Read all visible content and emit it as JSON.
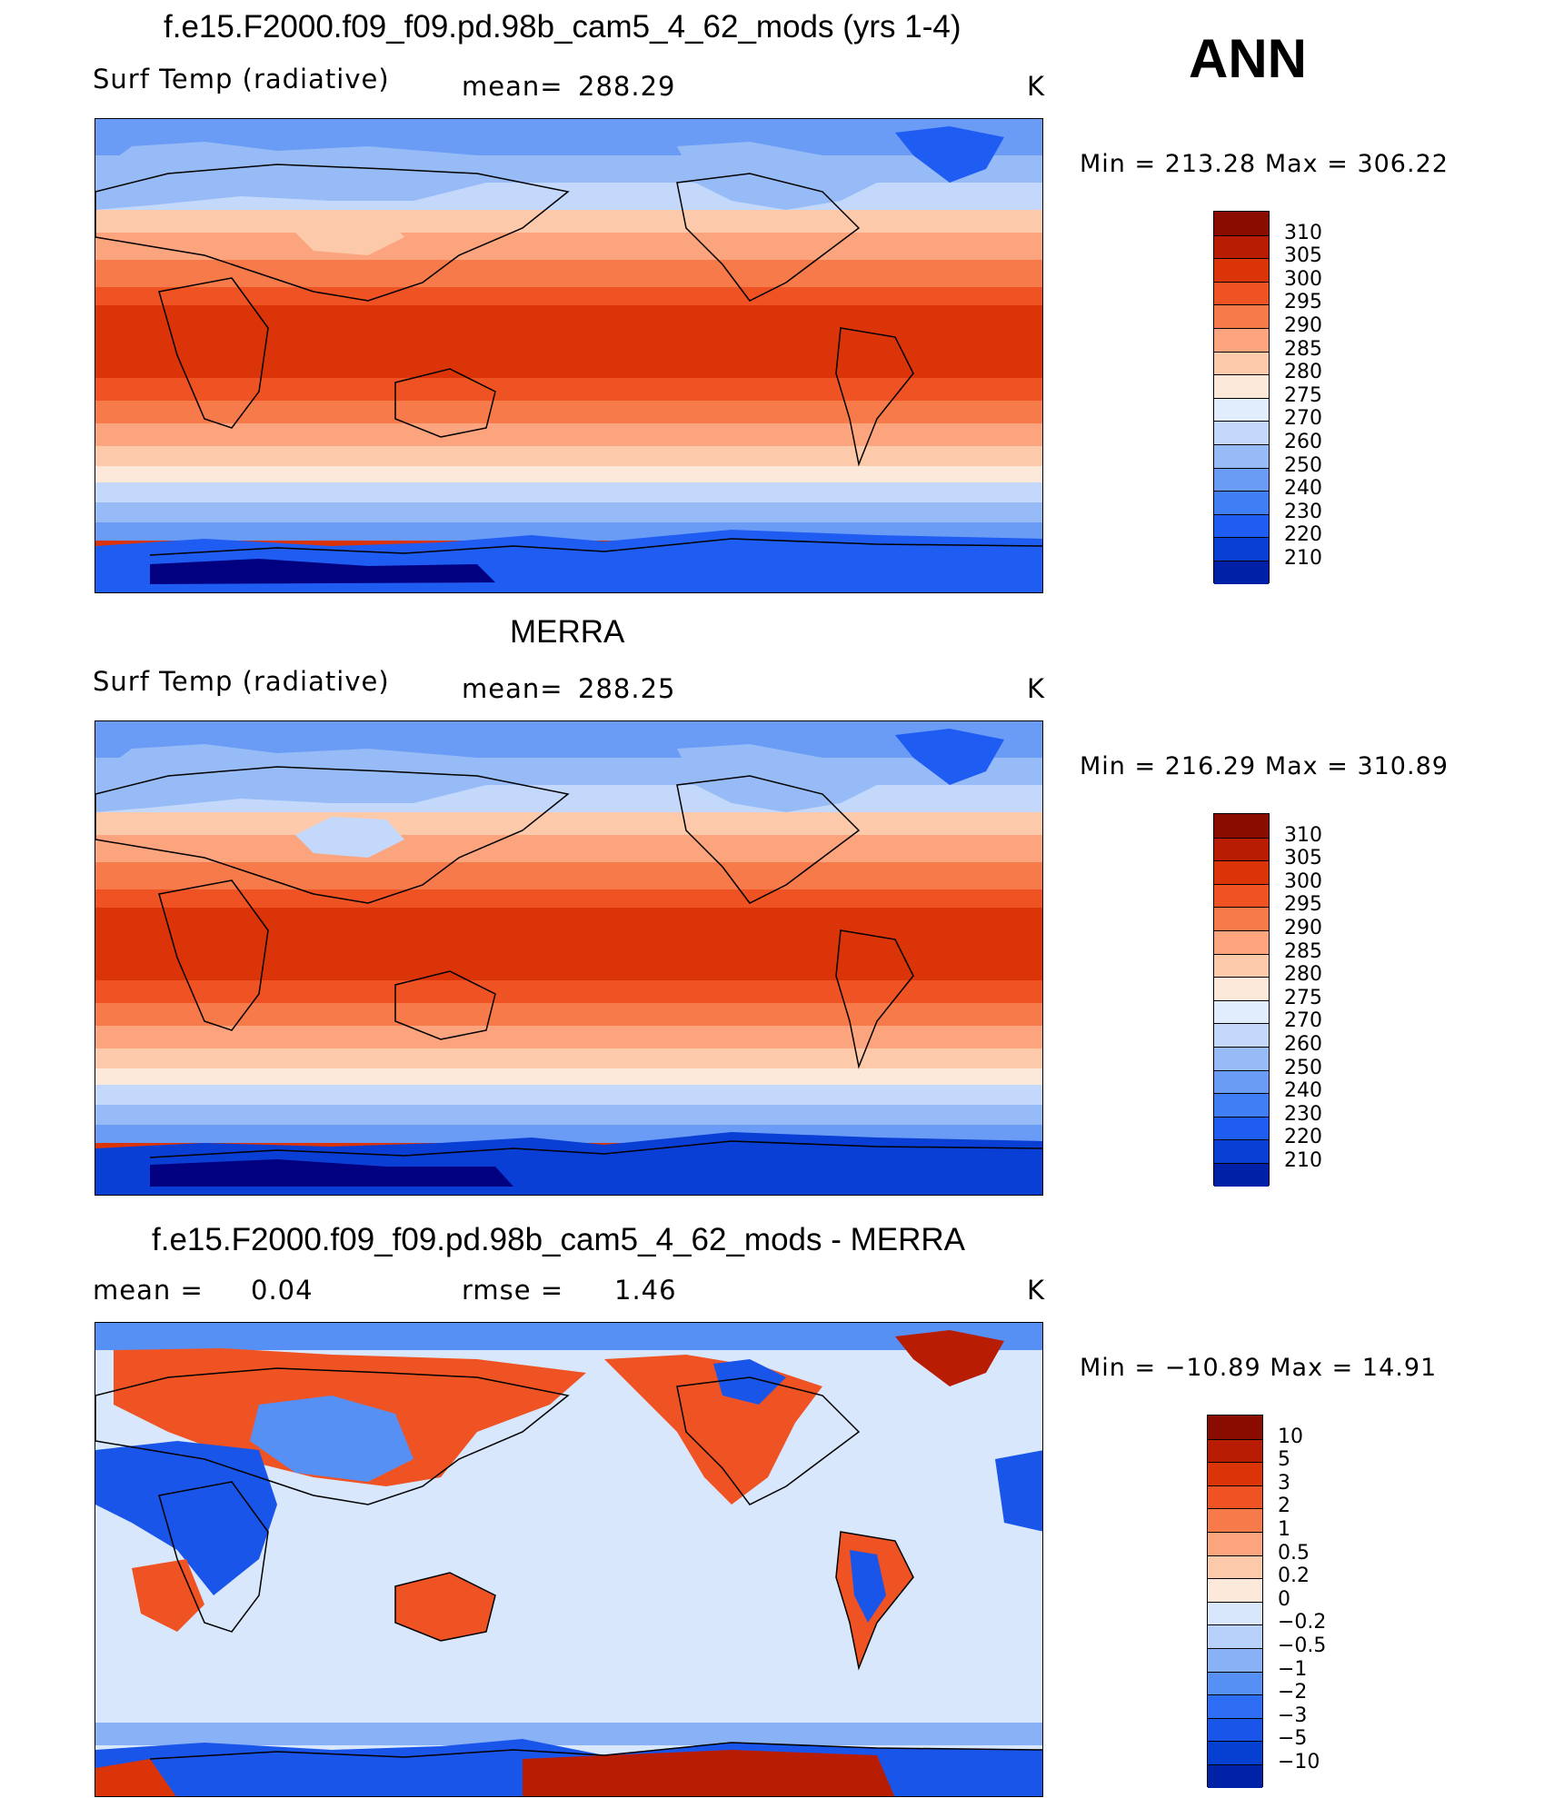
{
  "season": "ANN",
  "colors": {
    "abs_scale": [
      "#000080",
      "#0020a8",
      "#0a3fd6",
      "#1f5cf2",
      "#3f7ef5",
      "#6a9cf5",
      "#97bbf7",
      "#c3d8fb",
      "#e1edfc",
      "#fde9d9",
      "#fccaab",
      "#fca47d",
      "#f77a4a",
      "#ef5323",
      "#db3408",
      "#b81d04",
      "#8a0c00"
    ],
    "diff_scale": [
      "#000080",
      "#0022a6",
      "#0640d2",
      "#1a55ea",
      "#2e6ef4",
      "#5790f5",
      "#89b1f6",
      "#b7d1fb",
      "#d8e7fc",
      "#fde9d9",
      "#fccaab",
      "#fca47d",
      "#f77a4a",
      "#ef5323",
      "#db3408",
      "#b81d04",
      "#8a0c00"
    ]
  },
  "panels": [
    {
      "title": "f.e15.F2000.f09_f09.pd.98b_cam5_4_62_mods (yrs 1-4)",
      "left_label": "Surf Temp (radiative)",
      "center_label": "mean=",
      "center_value": "288.29",
      "units": "K",
      "min_label": "Min",
      "min_value": "213.28",
      "max_label": "Max",
      "max_value": "306.22",
      "levels": [
        "310",
        "305",
        "300",
        "295",
        "290",
        "285",
        "280",
        "275",
        "270",
        "260",
        "250",
        "240",
        "230",
        "220",
        "210"
      ]
    },
    {
      "title": "MERRA",
      "left_label": "Surf Temp (radiative)",
      "center_label": "mean=",
      "center_value": "288.25",
      "units": "K",
      "min_label": "Min",
      "min_value": "216.29",
      "max_label": "Max",
      "max_value": "310.89",
      "levels": [
        "310",
        "305",
        "300",
        "295",
        "290",
        "285",
        "280",
        "275",
        "270",
        "260",
        "250",
        "240",
        "230",
        "220",
        "210"
      ]
    },
    {
      "title": "f.e15.F2000.f09_f09.pd.98b_cam5_4_62_mods - MERRA",
      "left_label": "mean =",
      "left_value": "0.04",
      "center_label": "rmse =",
      "center_value": "1.46",
      "units": "K",
      "min_label": "Min",
      "min_value": "−10.89",
      "max_label": "Max",
      "max_value": "14.91",
      "levels": [
        "10",
        "5",
        "3",
        "2",
        "1",
        "0.5",
        "0.2",
        "0",
        "−0.2",
        "−0.5",
        "−1",
        "−2",
        "−3",
        "−5",
        "−10"
      ]
    }
  ],
  "chart_data": [
    {
      "type": "heatmap",
      "title": "f.e15.F2000.f09_f09.pd.98b_cam5_4_62_mods (yrs 1-4)",
      "variable": "Surf Temp (radiative)",
      "units": "K",
      "mean": 288.29,
      "min": 213.28,
      "max": 306.22,
      "colorbar_levels": [
        210,
        220,
        230,
        240,
        250,
        260,
        270,
        275,
        280,
        285,
        290,
        295,
        300,
        305,
        310
      ],
      "season": "ANN"
    },
    {
      "type": "heatmap",
      "title": "MERRA",
      "variable": "Surf Temp (radiative)",
      "units": "K",
      "mean": 288.25,
      "min": 216.29,
      "max": 310.89,
      "colorbar_levels": [
        210,
        220,
        230,
        240,
        250,
        260,
        270,
        275,
        280,
        285,
        290,
        295,
        300,
        305,
        310
      ],
      "season": "ANN"
    },
    {
      "type": "heatmap",
      "title": "f.e15.F2000.f09_f09.pd.98b_cam5_4_62_mods - MERRA",
      "units": "K",
      "mean": 0.04,
      "rmse": 1.46,
      "min": -10.89,
      "max": 14.91,
      "colorbar_levels": [
        -10,
        -5,
        -3,
        -2,
        -1,
        -0.5,
        -0.2,
        0,
        0.2,
        0.5,
        1,
        2,
        3,
        5,
        10
      ],
      "season": "ANN"
    }
  ]
}
